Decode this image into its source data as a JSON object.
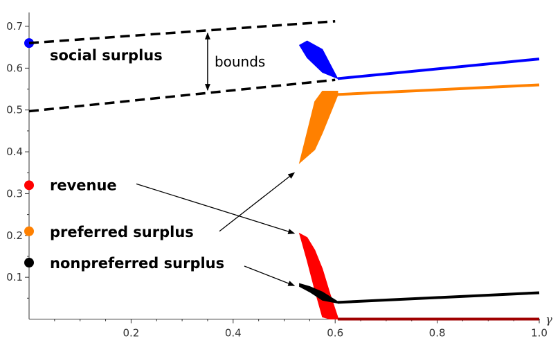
{
  "chart_data": {
    "type": "line",
    "title": "",
    "xlabel": "γ",
    "ylabel": "",
    "xlim": [
      0,
      1.0
    ],
    "ylim": [
      0,
      0.75
    ],
    "x_ticks": [
      0.2,
      0.4,
      0.6,
      0.8,
      1.0
    ],
    "x_tick_labels": [
      "0.2",
      "0.4",
      "0.6",
      "0.8",
      "1.0"
    ],
    "y_ticks": [
      0.1,
      0.2,
      0.3,
      0.4,
      0.5,
      0.6,
      0.7
    ],
    "y_tick_labels": [
      "0.1",
      "0.2",
      "0.3",
      "0.4",
      "0.5",
      "0.6",
      "0.7"
    ],
    "grid": false,
    "colors": {
      "social": "#0000ff",
      "preferred": "#ff8000",
      "revenue": "#ff0000",
      "nonpreferred": "#000000",
      "bounds": "#000000"
    },
    "series": [
      {
        "name": "social surplus",
        "key": "social",
        "start_value": 0.66,
        "band": [
          [
            0.53,
            0.655,
            0.655
          ],
          [
            0.545,
            0.625,
            0.665
          ],
          [
            0.575,
            0.59,
            0.645
          ],
          [
            0.605,
            0.575,
            0.575
          ]
        ],
        "line": [
          [
            0.605,
            0.575
          ],
          [
            1.0,
            0.622
          ]
        ]
      },
      {
        "name": "preferred surplus",
        "key": "preferred",
        "start_value": 0.21,
        "band": [
          [
            0.53,
            0.373,
            0.373
          ],
          [
            0.56,
            0.405,
            0.52
          ],
          [
            0.575,
            0.445,
            0.545
          ],
          [
            0.605,
            0.535,
            0.545
          ]
        ],
        "line": [
          [
            0.605,
            0.537
          ],
          [
            1.0,
            0.56
          ]
        ]
      },
      {
        "name": "revenue",
        "key": "revenue",
        "start_value": 0.32,
        "band": [
          [
            0.53,
            0.205,
            0.205
          ],
          [
            0.545,
            0.14,
            0.195
          ],
          [
            0.56,
            0.07,
            0.165
          ],
          [
            0.575,
            0.005,
            0.12
          ],
          [
            0.59,
            0.0,
            0.06
          ],
          [
            0.605,
            0.0,
            0.005
          ]
        ],
        "line": [
          [
            0.605,
            0.0
          ],
          [
            1.0,
            0.0
          ]
        ]
      },
      {
        "name": "nonpreferred surplus",
        "key": "nonpreferred",
        "start_value": 0.135,
        "band": [
          [
            0.53,
            0.078,
            0.085
          ],
          [
            0.55,
            0.065,
            0.078
          ],
          [
            0.575,
            0.045,
            0.065
          ],
          [
            0.605,
            0.038,
            0.042
          ]
        ],
        "line": [
          [
            0.605,
            0.04
          ],
          [
            1.0,
            0.063
          ]
        ]
      }
    ],
    "bounds": {
      "label": "bounds",
      "upper": [
        [
          0.0,
          0.66
        ],
        [
          0.6,
          0.712
        ]
      ],
      "lower": [
        [
          0.0,
          0.497
        ],
        [
          0.6,
          0.572
        ]
      ],
      "arrow_x": 0.35
    },
    "annotations": [
      {
        "text": "social surplus",
        "series": "social"
      },
      {
        "text": "revenue",
        "series": "revenue"
      },
      {
        "text": "preferred surplus",
        "series": "preferred"
      },
      {
        "text": "nonpreferred surplus",
        "series": "nonpreferred"
      }
    ]
  }
}
